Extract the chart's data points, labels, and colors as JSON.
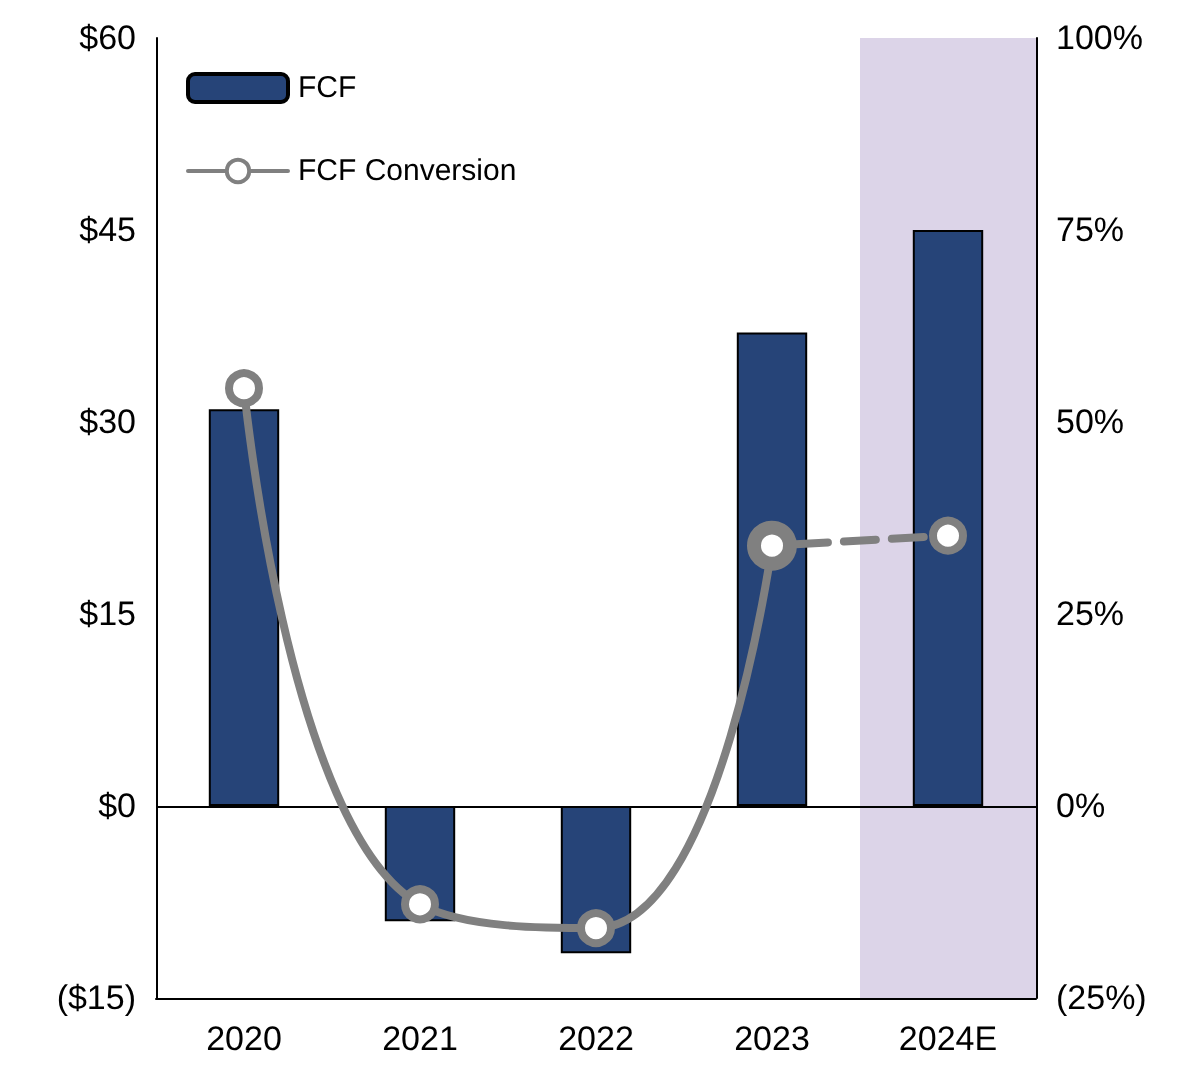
{
  "chart_data": {
    "type": "bar",
    "categories": [
      "2020",
      "2021",
      "2022",
      "2023",
      "2024E"
    ],
    "series": [
      {
        "name": "FCF",
        "color": "#264478",
        "values": [
          31,
          -9,
          -11.5,
          37,
          45
        ]
      },
      {
        "name": "FCF Conversion",
        "type": "line",
        "axis": "y2",
        "color": "#808080",
        "marker": "circle",
        "line_style": "solid",
        "values": [
          54.4,
          -12.8,
          -15.9,
          33.9,
          null
        ]
      },
      {
        "type": "line",
        "axis": "y2",
        "color": "#808080",
        "marker": "circle",
        "line_style": "dashed",
        "values": [
          null,
          null,
          null,
          33.9,
          35.2
        ]
      }
    ],
    "ylim": [
      -15,
      60
    ],
    "yticks": [
      {
        "value": -15,
        "label": "($15)"
      },
      {
        "value": 0,
        "label": "$0"
      },
      {
        "value": 15,
        "label": "$15"
      },
      {
        "value": 30,
        "label": "$30"
      },
      {
        "value": 45,
        "label": "$45"
      },
      {
        "value": 60,
        "label": "$60"
      }
    ],
    "y2lim": [
      -25,
      100
    ],
    "y2ticks": [
      {
        "value": -25,
        "label": "(25%)"
      },
      {
        "value": 0,
        "label": "0%"
      },
      {
        "value": 25,
        "label": "25%"
      },
      {
        "value": 50,
        "label": "50%"
      },
      {
        "value": 75,
        "label": "75%"
      },
      {
        "value": 100,
        "label": "100%"
      }
    ],
    "ref_lines": [
      {
        "axis": "y",
        "value": 0,
        "color": "#000000"
      }
    ],
    "bands": [
      {
        "axis": "x",
        "from": "2024E",
        "to": "2024E",
        "color": "#dcd4e8"
      }
    ],
    "grid": false,
    "legend": "top left"
  }
}
